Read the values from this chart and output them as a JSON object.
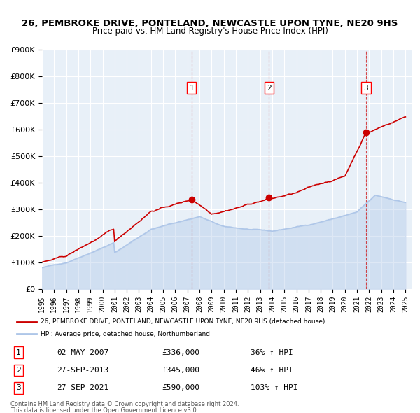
{
  "title": "26, PEMBROKE DRIVE, PONTELAND, NEWCASTLE UPON TYNE, NE20 9HS",
  "subtitle": "Price paid vs. HM Land Registry's House Price Index (HPI)",
  "ylabel": "",
  "xlim": [
    1995,
    2025.5
  ],
  "ylim": [
    0,
    900000
  ],
  "yticks": [
    0,
    100000,
    200000,
    300000,
    400000,
    500000,
    600000,
    700000,
    800000,
    900000
  ],
  "ytick_labels": [
    "£0",
    "£100K",
    "£200K",
    "£300K",
    "£400K",
    "£500K",
    "£600K",
    "£700K",
    "£800K",
    "£900K"
  ],
  "xticks": [
    1995,
    1996,
    1997,
    1998,
    1999,
    2000,
    2001,
    2002,
    2003,
    2004,
    2005,
    2006,
    2007,
    2008,
    2009,
    2010,
    2011,
    2012,
    2013,
    2014,
    2015,
    2016,
    2017,
    2018,
    2019,
    2020,
    2021,
    2022,
    2023,
    2024,
    2025
  ],
  "sale_dates": [
    2007.34,
    2013.74,
    2021.74
  ],
  "sale_prices": [
    336000,
    345000,
    590000
  ],
  "sale_labels": [
    "1",
    "2",
    "3"
  ],
  "hpi_color": "#aec6e8",
  "price_color": "#cc0000",
  "sale_marker_color": "#cc0000",
  "vline_color": "#cc0000",
  "background_color": "#ffffff",
  "plot_bg_color": "#e8f0f8",
  "grid_color": "#ffffff",
  "legend_label_price": "26, PEMBROKE DRIVE, PONTELAND, NEWCASTLE UPON TYNE, NE20 9HS (detached house)",
  "legend_label_hpi": "HPI: Average price, detached house, Northumberland",
  "annotations": [
    {
      "label": "1",
      "date": "02-MAY-2007",
      "price": "£336,000",
      "pct": "36% ↑ HPI"
    },
    {
      "label": "2",
      "date": "27-SEP-2013",
      "price": "£345,000",
      "pct": "46% ↑ HPI"
    },
    {
      "label": "3",
      "date": "27-SEP-2021",
      "price": "£590,000",
      "pct": "103% ↑ HPI"
    }
  ],
  "footer1": "Contains HM Land Registry data © Crown copyright and database right 2024.",
  "footer2": "This data is licensed under the Open Government Licence v3.0."
}
